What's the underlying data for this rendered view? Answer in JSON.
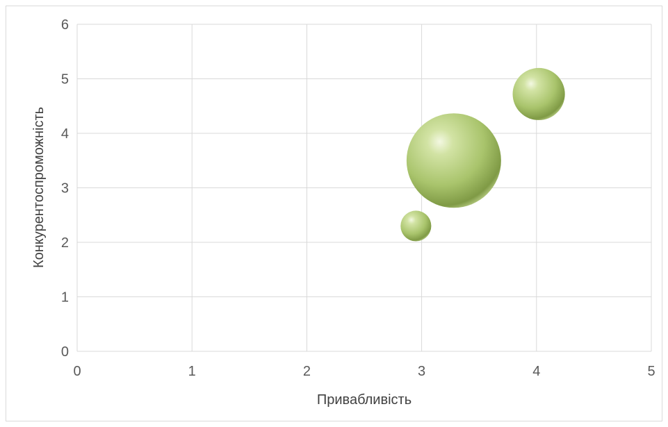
{
  "chart_data": {
    "type": "bubble",
    "title": "",
    "xlabel": "Привабливість",
    "ylabel": "Конкурентоспроможність",
    "xlim": [
      0,
      5
    ],
    "ylim": [
      0,
      6
    ],
    "x_ticks": [
      "0",
      "1",
      "2",
      "3",
      "4",
      "5"
    ],
    "y_ticks": [
      "0",
      "1",
      "2",
      "3",
      "4",
      "5",
      "6"
    ],
    "grid": true,
    "legend": "none",
    "bubble_color": "#a9c46c",
    "points": [
      {
        "x": 2.95,
        "y": 2.3,
        "size": 1
      },
      {
        "x": 3.28,
        "y": 3.5,
        "size": 9.5
      },
      {
        "x": 4.02,
        "y": 4.72,
        "size": 2.9
      }
    ]
  }
}
